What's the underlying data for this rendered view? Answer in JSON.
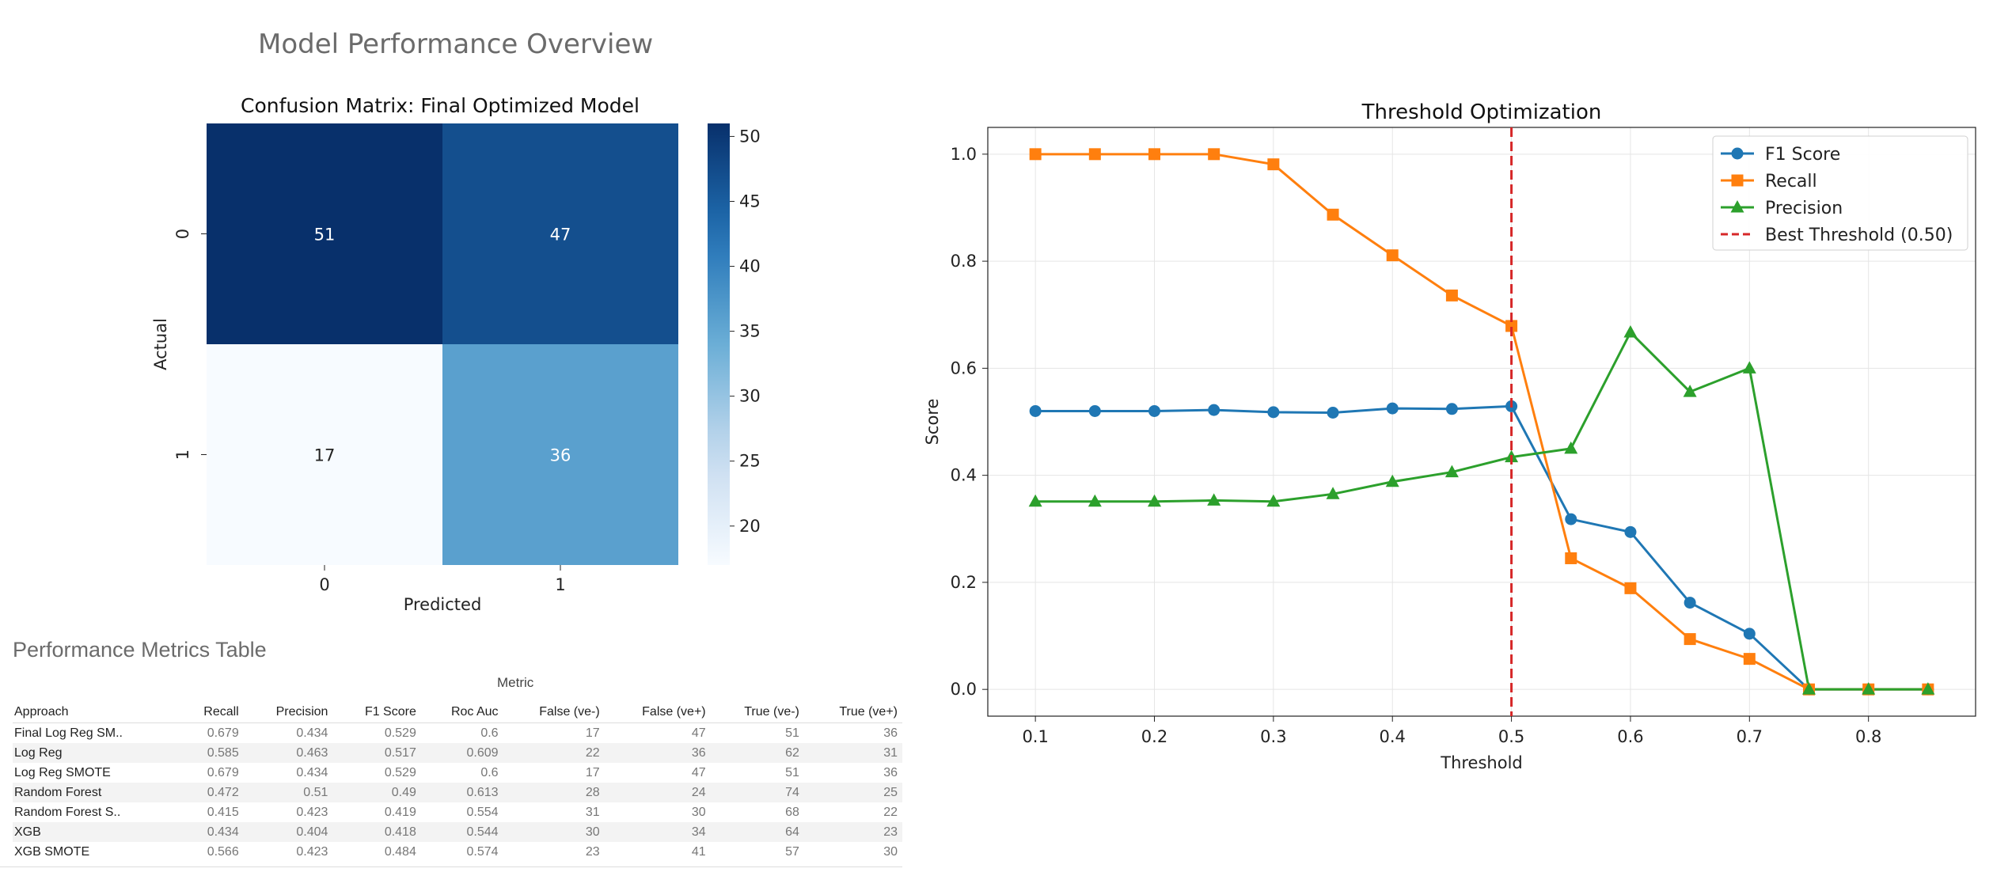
{
  "dashboard": {
    "title": "Model Performance Overview",
    "table_title": "Performance Metrics Table",
    "metric_group_label": "Metric",
    "columns": [
      "Approach",
      "Recall",
      "Precision",
      "F1 Score",
      "Roc Auc",
      "False (ve-)",
      "False (ve+)",
      "True (ve-)",
      "True (ve+)"
    ],
    "rows": [
      [
        "Final Log Reg SM..",
        "0.679",
        "0.434",
        "0.529",
        "0.6",
        "17",
        "47",
        "51",
        "36"
      ],
      [
        "Log Reg",
        "0.585",
        "0.463",
        "0.517",
        "0.609",
        "22",
        "36",
        "62",
        "31"
      ],
      [
        "Log Reg SMOTE",
        "0.679",
        "0.434",
        "0.529",
        "0.6",
        "17",
        "47",
        "51",
        "36"
      ],
      [
        "Random Forest",
        "0.472",
        "0.51",
        "0.49",
        "0.613",
        "28",
        "24",
        "74",
        "25"
      ],
      [
        "Random Forest S..",
        "0.415",
        "0.423",
        "0.419",
        "0.554",
        "31",
        "30",
        "68",
        "22"
      ],
      [
        "XGB",
        "0.434",
        "0.404",
        "0.418",
        "0.544",
        "30",
        "34",
        "64",
        "23"
      ],
      [
        "XGB SMOTE",
        "0.566",
        "0.423",
        "0.484",
        "0.574",
        "23",
        "41",
        "57",
        "30"
      ]
    ]
  },
  "chart_data": [
    {
      "type": "heatmap",
      "title": "Confusion Matrix: Final Optimized Model",
      "xlabel": "Predicted",
      "ylabel": "Actual",
      "x_categories": [
        "0",
        "1"
      ],
      "y_categories": [
        "0",
        "1"
      ],
      "values": [
        [
          51,
          47
        ],
        [
          17,
          36
        ]
      ],
      "colormap": "Blues",
      "colorbar_ticks": [
        20,
        25,
        30,
        35,
        40,
        45,
        50
      ],
      "colorbar_range": [
        17,
        51
      ]
    },
    {
      "type": "line",
      "title": "Threshold Optimization",
      "xlabel": "Threshold",
      "ylabel": "Score",
      "x": [
        0.1,
        0.15,
        0.2,
        0.25,
        0.3,
        0.35,
        0.4,
        0.45,
        0.5,
        0.55,
        0.6,
        0.65,
        0.7,
        0.75,
        0.8,
        0.85
      ],
      "xlim": [
        0.06,
        0.89
      ],
      "ylim": [
        -0.05,
        1.05
      ],
      "x_ticks": [
        0.1,
        0.2,
        0.3,
        0.4,
        0.5,
        0.6,
        0.7,
        0.8
      ],
      "y_ticks": [
        0.0,
        0.2,
        0.4,
        0.6,
        0.8,
        1.0
      ],
      "grid": true,
      "legend_position": "top-right",
      "series": [
        {
          "name": "F1 Score",
          "color": "#1f77b4",
          "marker": "circle",
          "values": [
            0.52,
            0.52,
            0.52,
            0.522,
            0.518,
            0.517,
            0.525,
            0.524,
            0.529,
            0.318,
            0.294,
            0.162,
            0.104,
            0.0,
            0.0,
            0.0
          ]
        },
        {
          "name": "Recall",
          "color": "#ff7f0e",
          "marker": "square",
          "values": [
            1.0,
            1.0,
            1.0,
            1.0,
            0.981,
            0.887,
            0.811,
            0.736,
            0.679,
            0.245,
            0.189,
            0.094,
            0.057,
            0.0,
            0.0,
            0.0
          ]
        },
        {
          "name": "Precision",
          "color": "#2ca02c",
          "marker": "triangle",
          "values": [
            0.351,
            0.351,
            0.351,
            0.353,
            0.351,
            0.365,
            0.388,
            0.406,
            0.434,
            0.45,
            0.667,
            0.556,
            0.6,
            0.0,
            0.0,
            0.0
          ]
        }
      ],
      "threshold_line": {
        "name": "Best Threshold (0.50)",
        "x": 0.5,
        "color": "#d62728"
      }
    }
  ]
}
